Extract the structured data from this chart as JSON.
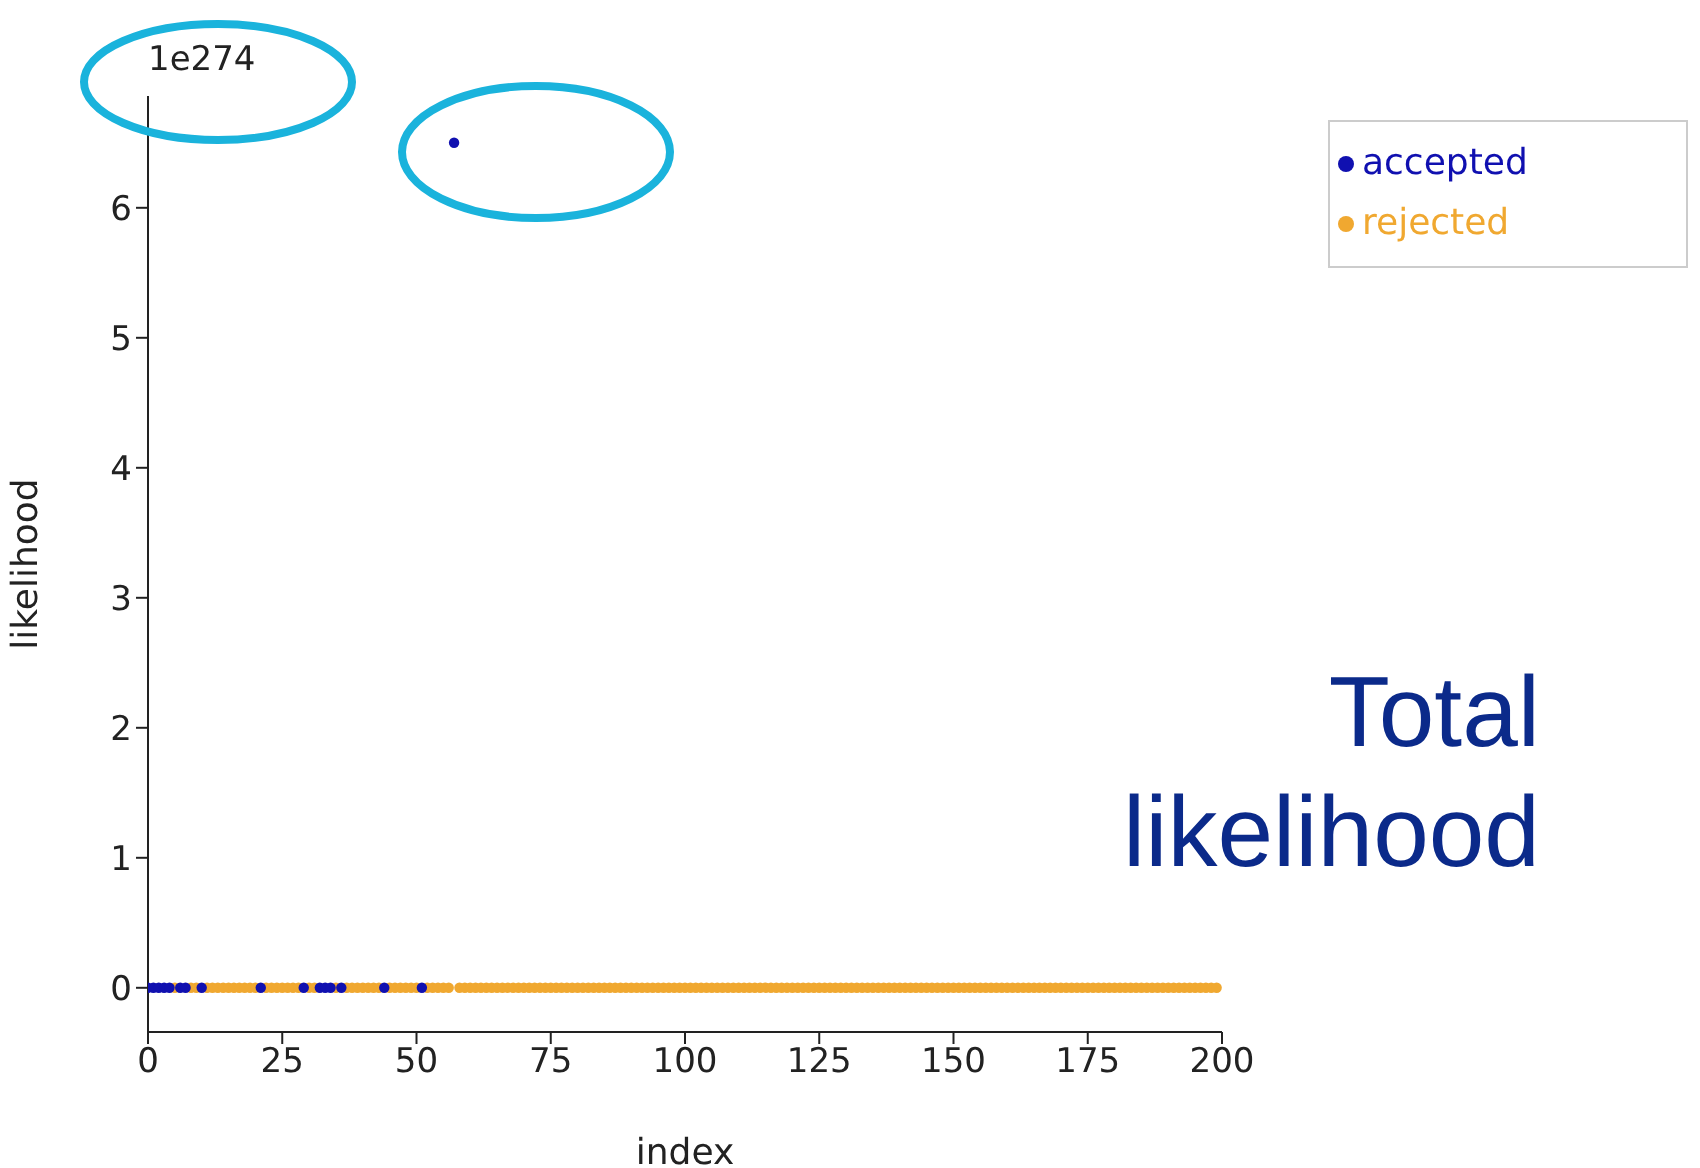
{
  "chart_data": {
    "type": "scatter",
    "xlabel": "index",
    "ylabel": "likelihood",
    "xlim": [
      0,
      200
    ],
    "xticks": [
      0,
      25,
      50,
      75,
      100,
      125,
      150,
      175,
      200
    ],
    "ylim": [
      -0.34,
      6.86
    ],
    "yticks": [
      0,
      1,
      2,
      3,
      4,
      5,
      6
    ],
    "legend": "top right",
    "marker": "circle",
    "grid": false,
    "annotations": [
      "1e274",
      "Total likelihood"
    ],
    "series": [
      {
        "name": "rejected",
        "color": "#f0a830",
        "x": [
          5,
          8,
          9,
          11,
          12,
          13,
          14,
          15,
          16,
          17,
          18,
          19,
          20,
          22,
          23,
          24,
          25,
          26,
          27,
          28,
          30,
          31,
          35,
          37,
          38,
          39,
          40,
          41,
          42,
          43,
          45,
          46,
          47,
          48,
          49,
          50,
          52,
          53,
          54,
          55,
          56,
          58,
          59,
          60,
          61,
          62,
          63,
          64,
          65,
          66,
          67,
          68,
          69,
          70,
          71,
          72,
          73,
          74,
          75,
          76,
          77,
          78,
          79,
          80,
          81,
          82,
          83,
          84,
          85,
          86,
          87,
          88,
          89,
          90,
          91,
          92,
          93,
          94,
          95,
          96,
          97,
          98,
          99,
          100,
          101,
          102,
          103,
          104,
          105,
          106,
          107,
          108,
          109,
          110,
          111,
          112,
          113,
          114,
          115,
          116,
          117,
          118,
          119,
          120,
          121,
          122,
          123,
          124,
          125,
          126,
          127,
          128,
          129,
          130,
          131,
          132,
          133,
          134,
          135,
          136,
          137,
          138,
          139,
          140,
          141,
          142,
          143,
          144,
          145,
          146,
          147,
          148,
          149,
          150,
          151,
          152,
          153,
          154,
          155,
          156,
          157,
          158,
          159,
          160,
          161,
          162,
          163,
          164,
          165,
          166,
          167,
          168,
          169,
          170,
          171,
          172,
          173,
          174,
          175,
          176,
          177,
          178,
          179,
          180,
          181,
          182,
          183,
          184,
          185,
          186,
          187,
          188,
          189,
          190,
          191,
          192,
          193,
          194,
          195,
          196,
          197,
          198,
          199
        ],
        "values": [
          0,
          0,
          0,
          0,
          0,
          0,
          0,
          0,
          0,
          0,
          0,
          0,
          0,
          0,
          0,
          0,
          0,
          0,
          0,
          0,
          0,
          0,
          0,
          0,
          0,
          0,
          0,
          0,
          0,
          0,
          0,
          0,
          0,
          0,
          0,
          0,
          0,
          0,
          0,
          0,
          0,
          0,
          0,
          0,
          0,
          0,
          0,
          0,
          0,
          0,
          0,
          0,
          0,
          0,
          0,
          0,
          0,
          0,
          0,
          0,
          0,
          0,
          0,
          0,
          0,
          0,
          0,
          0,
          0,
          0,
          0,
          0,
          0,
          0,
          0,
          0,
          0,
          0,
          0,
          0,
          0,
          0,
          0,
          0,
          0,
          0,
          0,
          0,
          0,
          0,
          0,
          0,
          0,
          0,
          0,
          0,
          0,
          0,
          0,
          0,
          0,
          0,
          0,
          0,
          0,
          0,
          0,
          0,
          0,
          0,
          0,
          0,
          0,
          0,
          0,
          0,
          0,
          0,
          0,
          0,
          0,
          0,
          0,
          0,
          0,
          0,
          0,
          0,
          0,
          0,
          0,
          0,
          0,
          0,
          0,
          0,
          0,
          0,
          0,
          0,
          0,
          0,
          0,
          0,
          0,
          0,
          0,
          0,
          0,
          0,
          0,
          0,
          0,
          0,
          0,
          0,
          0,
          0,
          0,
          0,
          0,
          0,
          0,
          0,
          0,
          0,
          0,
          0,
          0,
          0,
          0,
          0,
          0,
          0,
          0,
          0,
          0,
          0,
          0,
          0,
          0,
          0,
          0
        ]
      },
      {
        "name": "accepted",
        "color": "#1010b0",
        "x": [
          0,
          1,
          2,
          3,
          4,
          6,
          7,
          10,
          21,
          29,
          32,
          33,
          34,
          36,
          44,
          51,
          57
        ],
        "values": [
          0,
          0,
          0,
          0,
          0,
          0,
          0,
          0,
          0,
          0,
          0,
          0,
          0,
          0,
          0,
          0,
          6.5
        ]
      }
    ]
  }
}
